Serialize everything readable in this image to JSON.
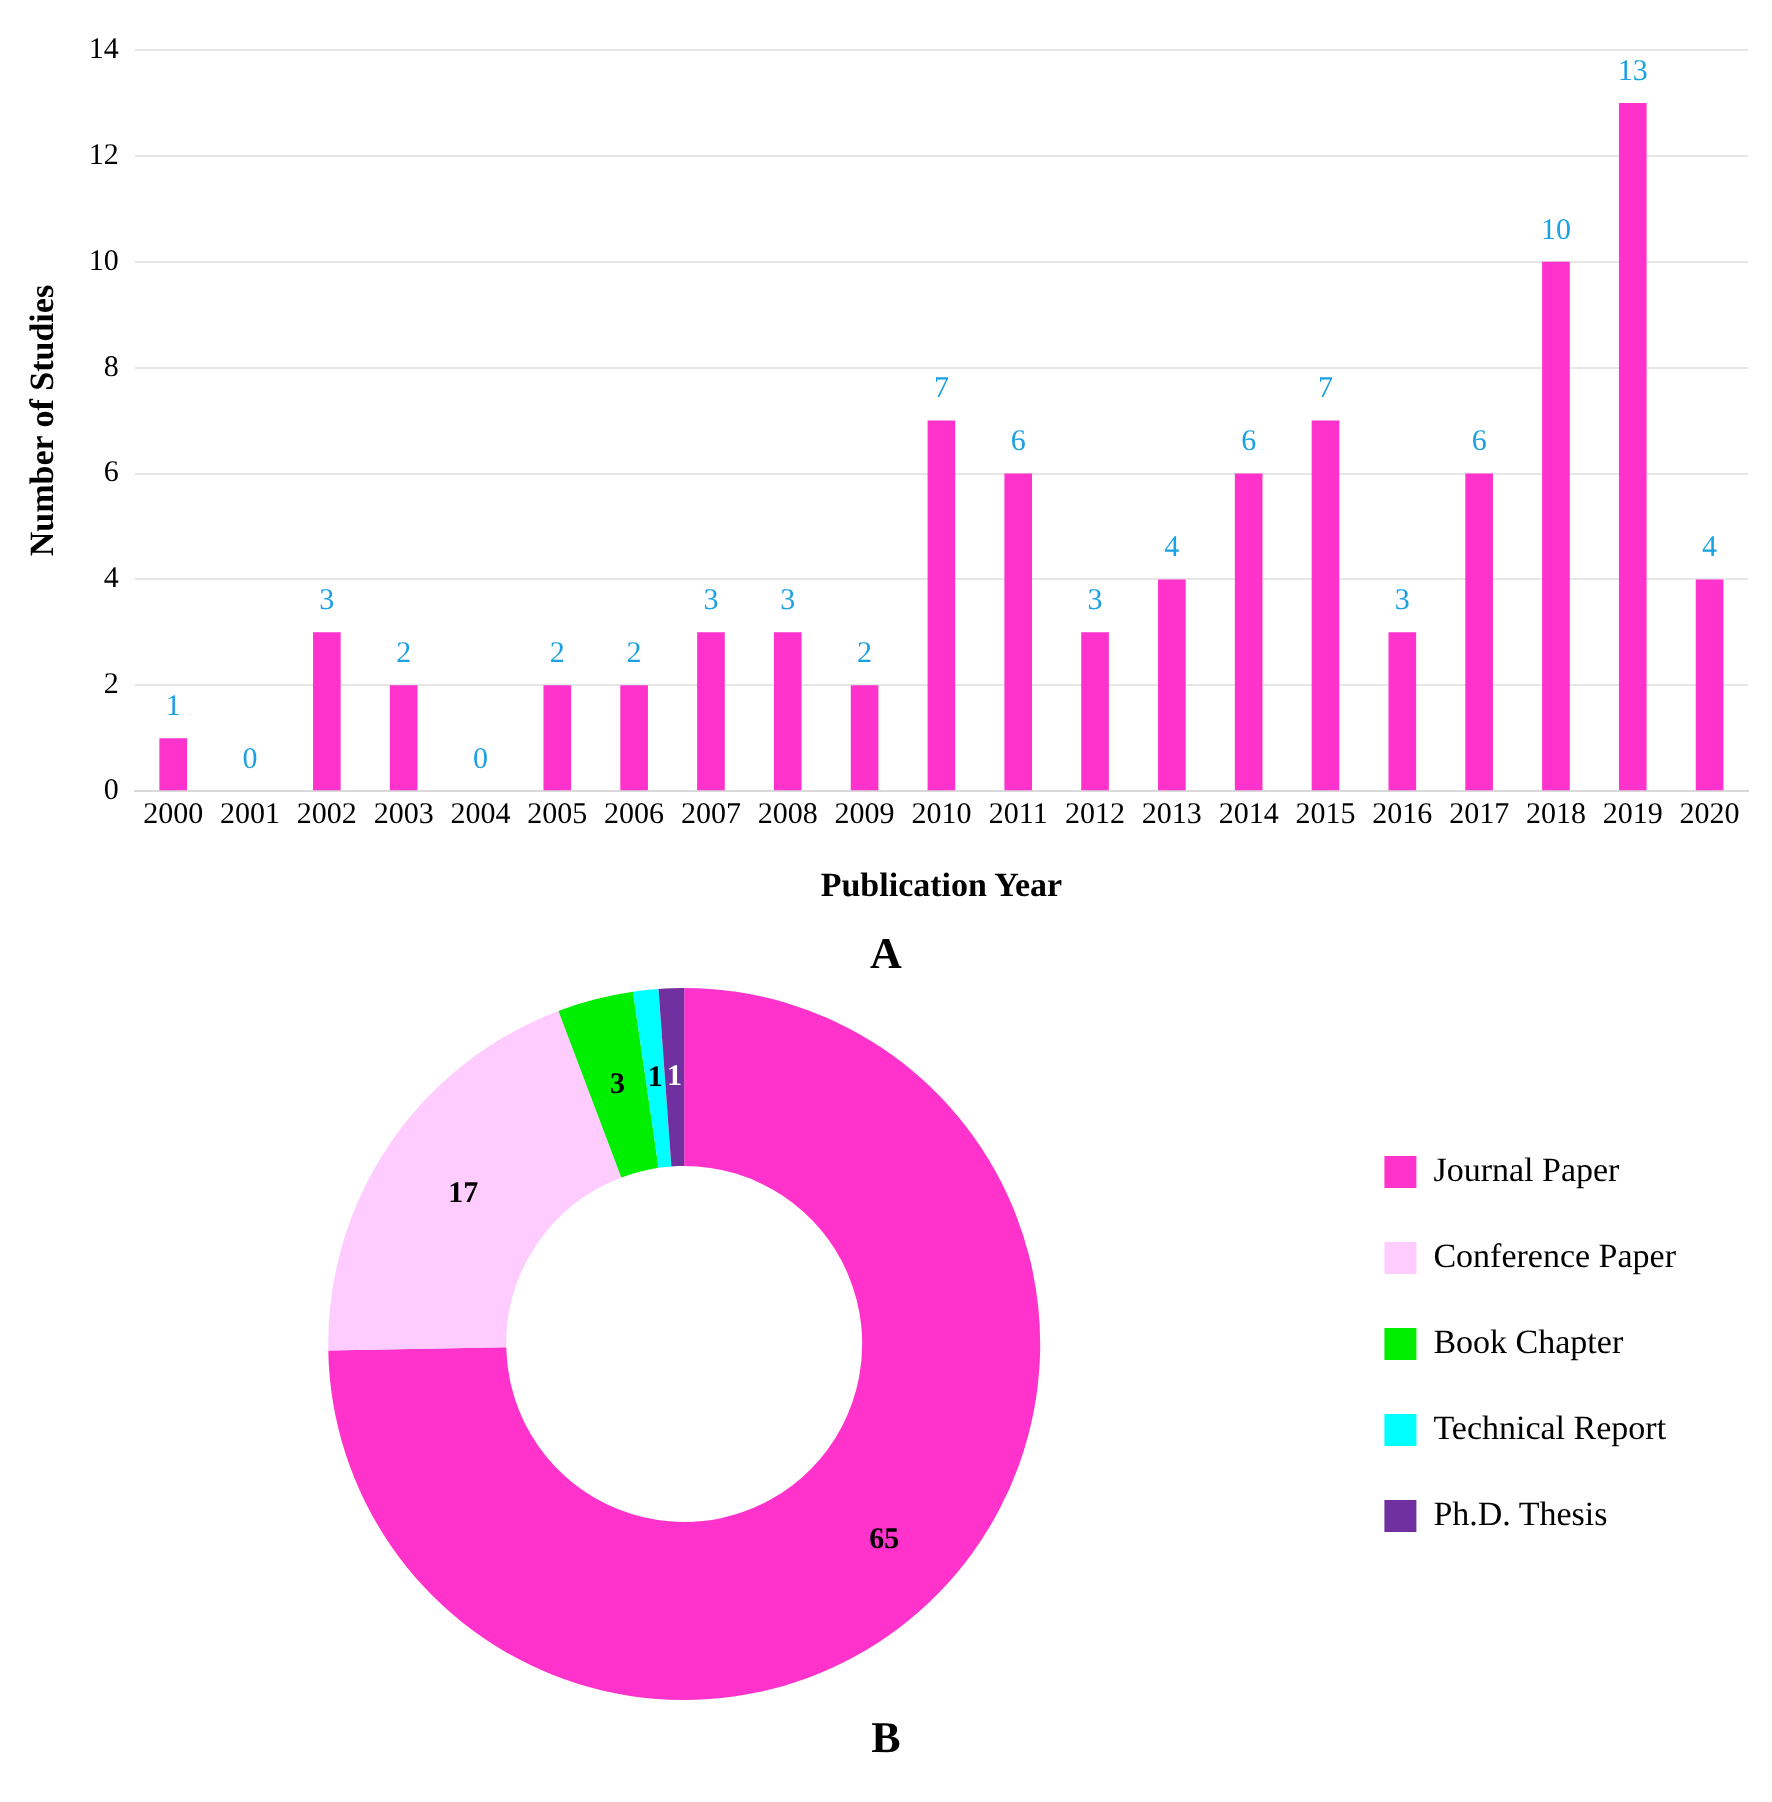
{
  "chart_data": [
    {
      "type": "bar",
      "xlabel": "Publication Year",
      "ylabel": "Number of Studies",
      "categories": [
        "2000",
        "2001",
        "2002",
        "2003",
        "2004",
        "2005",
        "2006",
        "2007",
        "2008",
        "2009",
        "2010",
        "2011",
        "2012",
        "2013",
        "2014",
        "2015",
        "2016",
        "2017",
        "2018",
        "2019",
        "2020"
      ],
      "values": [
        1,
        0,
        3,
        2,
        0,
        2,
        2,
        3,
        3,
        2,
        7,
        6,
        3,
        4,
        6,
        7,
        3,
        6,
        10,
        13,
        4
      ],
      "color": "#ff33cc",
      "ylim": [
        0,
        14
      ],
      "yticks": [
        0,
        2,
        4,
        6,
        8,
        10,
        12,
        14
      ],
      "grid": "y",
      "data_labels": true,
      "annotations": [
        "A"
      ]
    },
    {
      "type": "donut",
      "categories": [
        "Journal Paper",
        "Conference Paper",
        "Book Chapter",
        "Technical Report",
        "Ph.D. Thesis"
      ],
      "values": [
        65,
        17,
        3,
        1,
        1
      ],
      "colors": [
        "#ff33cc",
        "#ffccff",
        "#00ee00",
        "#00ffff",
        "#7030a0"
      ],
      "legend": "right",
      "data_labels": true,
      "annotations": [
        "B"
      ]
    }
  ]
}
